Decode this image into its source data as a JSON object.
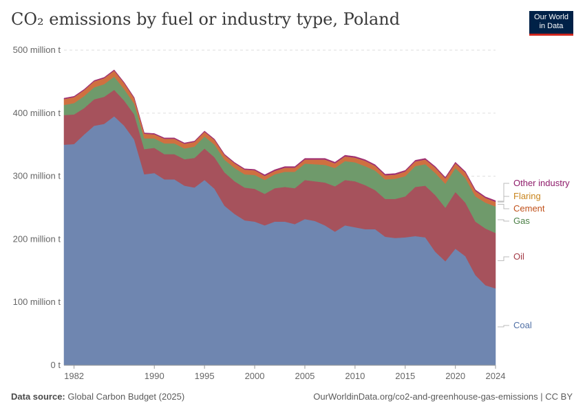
{
  "header": {
    "title": "CO₂ emissions by fuel or industry type, Poland"
  },
  "logo": {
    "line1": "Our World",
    "line2": "in Data"
  },
  "footer": {
    "source_label": "Data source:",
    "source_value": "Global Carbon Budget (2025)",
    "url": "OurWorldinData.org/co2-and-greenhouse-gas-emissions | CC BY"
  },
  "colors": {
    "coal": "#6f86b0",
    "oil": "#a6525c",
    "gas": "#6f9a6b",
    "cement": "#cf7040",
    "flaring": "#e09a4a",
    "other": "#a03070",
    "label_coal": "#4f6fa5",
    "label_oil": "#a33a45",
    "label_gas": "#4a7f45",
    "label_cement": "#c0501a",
    "label_flaring": "#c8841c",
    "label_other": "#8e1a6a"
  },
  "chart_data": {
    "type": "area",
    "stacked": true,
    "title": "CO₂ emissions by fuel or industry type, Poland",
    "ylim": [
      0,
      500
    ],
    "xlim": [
      1981,
      2024
    ],
    "y_ticks": [
      {
        "value": 0,
        "label": "0 t"
      },
      {
        "value": 100,
        "label": "100 million t"
      },
      {
        "value": 200,
        "label": "200 million t"
      },
      {
        "value": 300,
        "label": "300 million t"
      },
      {
        "value": 400,
        "label": "400 million t"
      },
      {
        "value": 500,
        "label": "500 million t"
      }
    ],
    "x_ticks": [
      {
        "value": 1982,
        "label": "1982"
      },
      {
        "value": 1990,
        "label": "1990"
      },
      {
        "value": 1995,
        "label": "1995"
      },
      {
        "value": 2000,
        "label": "2000"
      },
      {
        "value": 2005,
        "label": "2005"
      },
      {
        "value": 2010,
        "label": "2010"
      },
      {
        "value": 2015,
        "label": "2015"
      },
      {
        "value": 2020,
        "label": "2020"
      },
      {
        "value": 2024,
        "label": "2024"
      }
    ],
    "grid": true,
    "legend": "right, inline labels",
    "x": [
      1981,
      1982,
      1983,
      1984,
      1985,
      1986,
      1987,
      1988,
      1989,
      1990,
      1991,
      1992,
      1993,
      1994,
      1995,
      1996,
      1997,
      1998,
      1999,
      2000,
      2001,
      2002,
      2003,
      2004,
      2005,
      2006,
      2007,
      2008,
      2009,
      2010,
      2011,
      2012,
      2013,
      2014,
      2015,
      2016,
      2017,
      2018,
      2019,
      2020,
      2021,
      2022,
      2023,
      2024
    ],
    "series": [
      {
        "name": "Coal",
        "key": "coal",
        "values": [
          350,
          351,
          366,
          380,
          383,
          395,
          380,
          358,
          303,
          305,
          295,
          295,
          285,
          282,
          294,
          280,
          253,
          240,
          230,
          228,
          222,
          228,
          228,
          224,
          232,
          229,
          222,
          212,
          222,
          219,
          216,
          216,
          204,
          202,
          203,
          205,
          203,
          180,
          165,
          185,
          173,
          143,
          127,
          122
        ]
      },
      {
        "name": "Oil",
        "key": "oil",
        "values": [
          47,
          47,
          42,
          42,
          43,
          42,
          40,
          40,
          40,
          40,
          40,
          40,
          42,
          47,
          50,
          50,
          53,
          52,
          52,
          52,
          50,
          53,
          55,
          57,
          62,
          63,
          68,
          72,
          72,
          73,
          70,
          62,
          60,
          62,
          65,
          78,
          82,
          90,
          85,
          90,
          85,
          85,
          90,
          88
        ]
      },
      {
        "name": "Gas",
        "key": "gas",
        "values": [
          16,
          18,
          19,
          19,
          20,
          21,
          18,
          17,
          17,
          15,
          17,
          17,
          17,
          18,
          19,
          20,
          20,
          21,
          21,
          22,
          22,
          22,
          24,
          26,
          26,
          27,
          28,
          29,
          30,
          30,
          30,
          31,
          31,
          32,
          32,
          33,
          34,
          35,
          38,
          38,
          39,
          40,
          41,
          42
        ]
      },
      {
        "name": "Cement",
        "key": "cement",
        "values": [
          9,
          9,
          9,
          9,
          9,
          9,
          9,
          8,
          7,
          6,
          7,
          7,
          7,
          7,
          7,
          7,
          7,
          7,
          7,
          7,
          6,
          5,
          6,
          6,
          6,
          7,
          8,
          7,
          7,
          7,
          8,
          7,
          6,
          6,
          7,
          7,
          7,
          8,
          8,
          7,
          8,
          8,
          7,
          7
        ]
      },
      {
        "name": "Flaring",
        "key": "flaring",
        "values": [
          0.3,
          0.3,
          0.3,
          0.3,
          0.3,
          0.3,
          0.3,
          0.3,
          0.3,
          0.3,
          0.3,
          0.3,
          0.3,
          0.3,
          0.3,
          0.3,
          0.3,
          0.3,
          0.3,
          0.3,
          0.3,
          0.3,
          0.3,
          0.3,
          0.3,
          0.3,
          0.3,
          0.3,
          0.3,
          0.3,
          0.3,
          0.3,
          0.3,
          0.3,
          0.3,
          0.3,
          0.3,
          0.3,
          0.3,
          0.3,
          0.3,
          0.3,
          0.3,
          0.3
        ]
      },
      {
        "name": "Other industry",
        "key": "other",
        "values": [
          1.5,
          1.5,
          1.5,
          1.5,
          1.5,
          1.5,
          1.5,
          1.5,
          1.5,
          1.5,
          1.5,
          1.5,
          1.5,
          1.5,
          1.5,
          1.5,
          1.5,
          1.5,
          1.5,
          1.5,
          2,
          2,
          2,
          2,
          2,
          2,
          2,
          2,
          2,
          2,
          2,
          2,
          2,
          2,
          2,
          2,
          2,
          2,
          2,
          2,
          2,
          2,
          2,
          2
        ]
      }
    ],
    "inline_labels": [
      {
        "key": "other",
        "text": "Other industry"
      },
      {
        "key": "flaring",
        "text": "Flaring"
      },
      {
        "key": "cement",
        "text": "Cement"
      },
      {
        "key": "gas",
        "text": "Gas"
      },
      {
        "key": "oil",
        "text": "Oil"
      },
      {
        "key": "coal",
        "text": "Coal"
      }
    ]
  }
}
